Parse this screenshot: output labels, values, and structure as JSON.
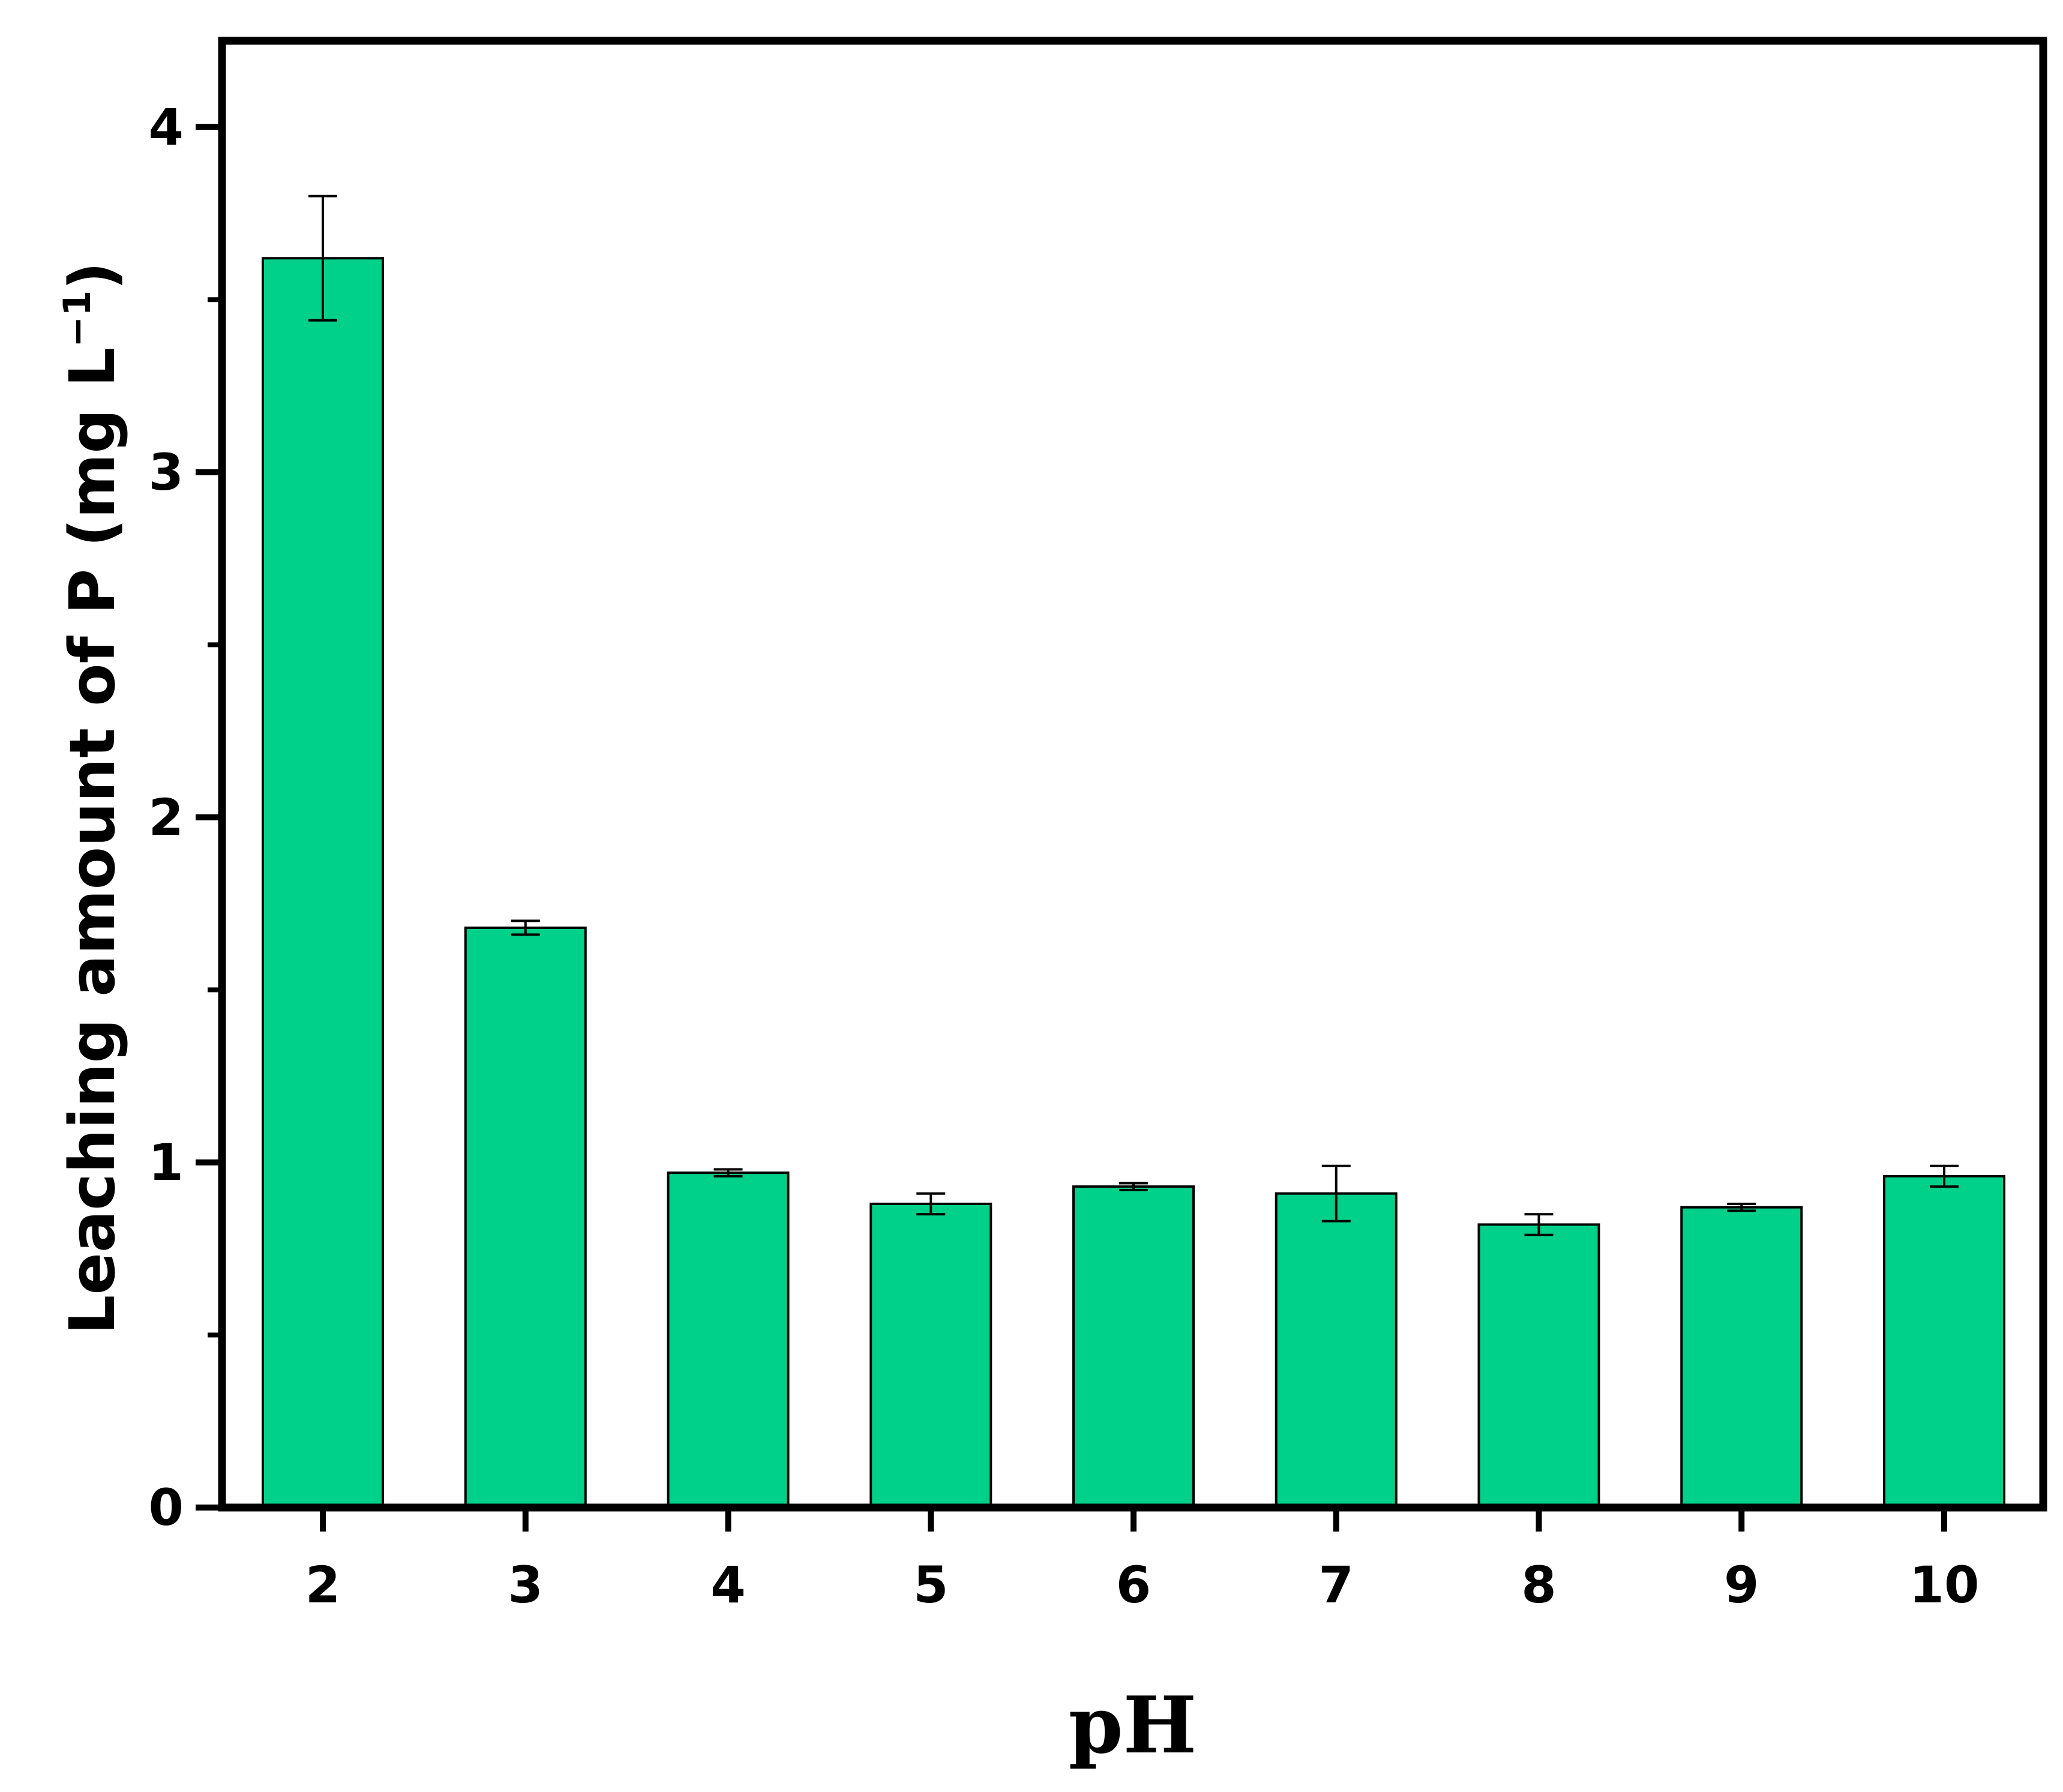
{
  "chart_data": {
    "type": "bar",
    "title": "",
    "xlabel": "pH",
    "ylabel": {
      "main": "Leaching amount of P (mg L",
      "superscript": "−1",
      "close": ")"
    },
    "categories": [
      "2",
      "3",
      "4",
      "5",
      "6",
      "7",
      "8",
      "9",
      "10"
    ],
    "values": [
      3.62,
      1.68,
      0.97,
      0.88,
      0.93,
      0.91,
      0.82,
      0.87,
      0.96
    ],
    "errors": [
      0.18,
      0.02,
      0.01,
      0.03,
      0.01,
      0.08,
      0.03,
      0.01,
      0.03
    ],
    "ylim": [
      0,
      4.25
    ],
    "yticks": [
      "0",
      "1",
      "2",
      "3",
      "4"
    ],
    "y_minor_ticks": [
      0.5,
      1.5,
      2.5,
      3.5
    ],
    "bar_color": "#00D18A",
    "bar_edge_color": "#000000",
    "grid": false,
    "legend": "none"
  }
}
